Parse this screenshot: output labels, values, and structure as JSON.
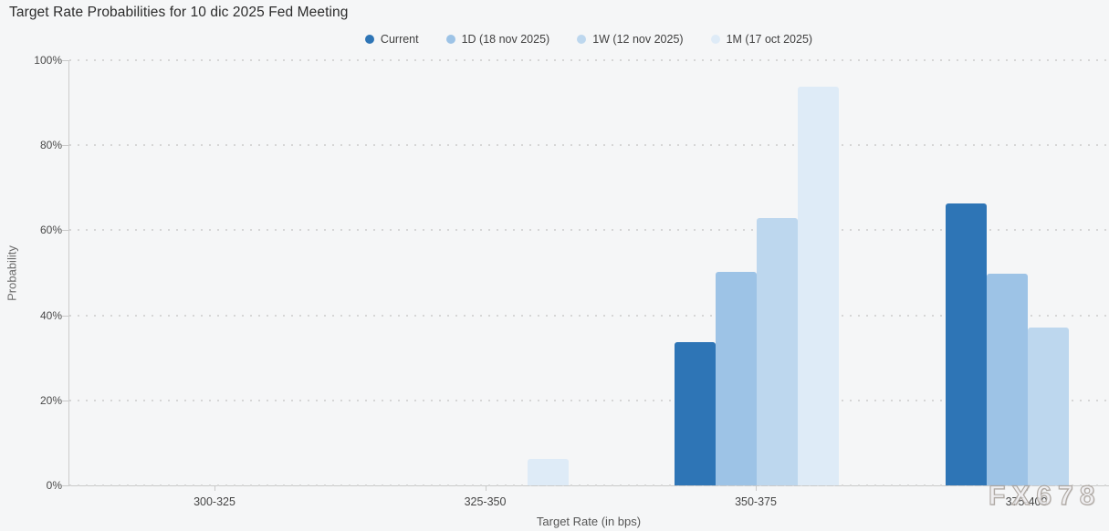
{
  "title": "Target Rate Probabilities for 10 dic 2025 Fed Meeting",
  "watermark": "FX678",
  "colors": {
    "background": "#f5f6f7",
    "axis": "#c9c9c9",
    "gridline": "#d6d6d6",
    "series_current": "#2E75B6",
    "series_1d": "#9DC3E6",
    "series_1w": "#BDD7EE",
    "series_1m": "#DEEBF7"
  },
  "chart_data": {
    "type": "bar",
    "title": "Target Rate Probabilities for 10 dic 2025 Fed Meeting",
    "xlabel": "Target Rate (in bps)",
    "ylabel": "Probability",
    "categories": [
      "300-325",
      "325-350",
      "350-375",
      "375-400"
    ],
    "series": [
      {
        "name": "Current",
        "color": "#2E75B6",
        "values": [
          0,
          0,
          33.7,
          66.3
        ]
      },
      {
        "name": "1D (18 nov 2025)",
        "color": "#9DC3E6",
        "values": [
          0,
          0,
          50.3,
          49.8
        ]
      },
      {
        "name": "1W (12 nov 2025)",
        "color": "#BDD7EE",
        "values": [
          0,
          0,
          62.8,
          37.2
        ]
      },
      {
        "name": "1M (17 oct 2025)",
        "color": "#DEEBF7",
        "values": [
          0,
          6.3,
          93.7,
          0
        ]
      }
    ],
    "y_ticks": [
      "0%",
      "20%",
      "40%",
      "60%",
      "80%",
      "100%"
    ],
    "ylim": [
      0,
      100
    ],
    "grid": "dotted-horizontal",
    "legend_position": "top-center"
  }
}
